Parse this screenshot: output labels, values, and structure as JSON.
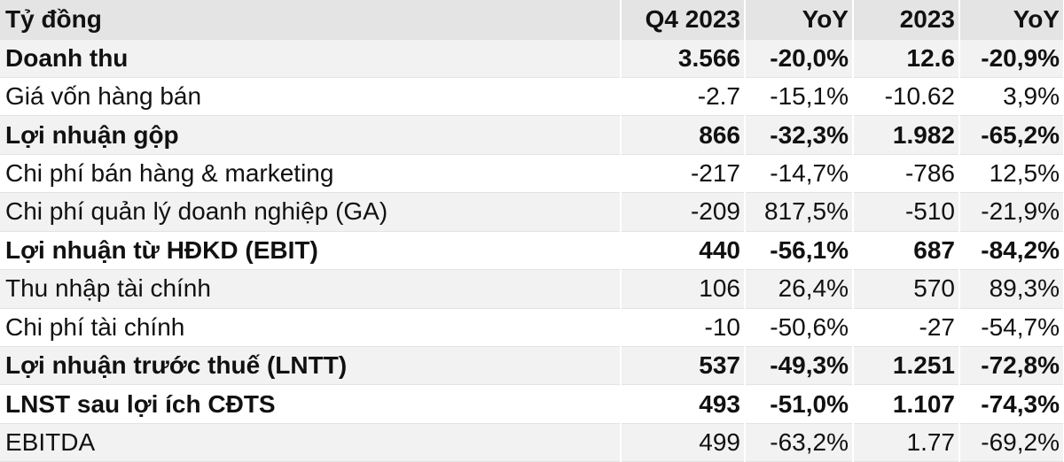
{
  "table": {
    "header": [
      "Tỷ đồng",
      "Q4 2023",
      "YoY",
      "2023",
      "YoY"
    ],
    "rows": [
      {
        "cells": [
          "Doanh thu",
          "3.566",
          "-20,0%",
          "12.6",
          "-20,9%"
        ],
        "bold": true
      },
      {
        "cells": [
          "Giá vốn hàng bán",
          "-2.7",
          "-15,1%",
          "-10.62",
          "3,9%"
        ],
        "bold": false
      },
      {
        "cells": [
          "Lợi nhuận gộp",
          "866",
          "-32,3%",
          "1.982",
          "-65,2%"
        ],
        "bold": true
      },
      {
        "cells": [
          "Chi phí bán hàng & marketing",
          "-217",
          "-14,7%",
          "-786",
          "12,5%"
        ],
        "bold": false
      },
      {
        "cells": [
          "Chi phí quản lý doanh nghiệp (GA)",
          "-209",
          "817,5%",
          "-510",
          "-21,9%"
        ],
        "bold": false
      },
      {
        "cells": [
          "Lợi nhuận từ HĐKD (EBIT)",
          "440",
          "-56,1%",
          "687",
          "-84,2%"
        ],
        "bold": true
      },
      {
        "cells": [
          "Thu nhập tài chính",
          "106",
          "26,4%",
          "570",
          "89,3%"
        ],
        "bold": false
      },
      {
        "cells": [
          "Chi phí tài chính",
          "-10",
          "-50,6%",
          "-27",
          "-54,7%"
        ],
        "bold": false
      },
      {
        "cells": [
          "Lợi nhuận trước thuế (LNTT)",
          "537",
          "-49,3%",
          "1.251",
          "-72,8%"
        ],
        "bold": true
      },
      {
        "cells": [
          "LNST sau lợi ích CĐTS",
          "493",
          "-51,0%",
          "1.107",
          "-74,3%"
        ],
        "bold": true
      },
      {
        "cells": [
          "EBITDA",
          "499",
          "-63,2%",
          "1.77",
          "-69,2%"
        ],
        "bold": false
      }
    ]
  }
}
